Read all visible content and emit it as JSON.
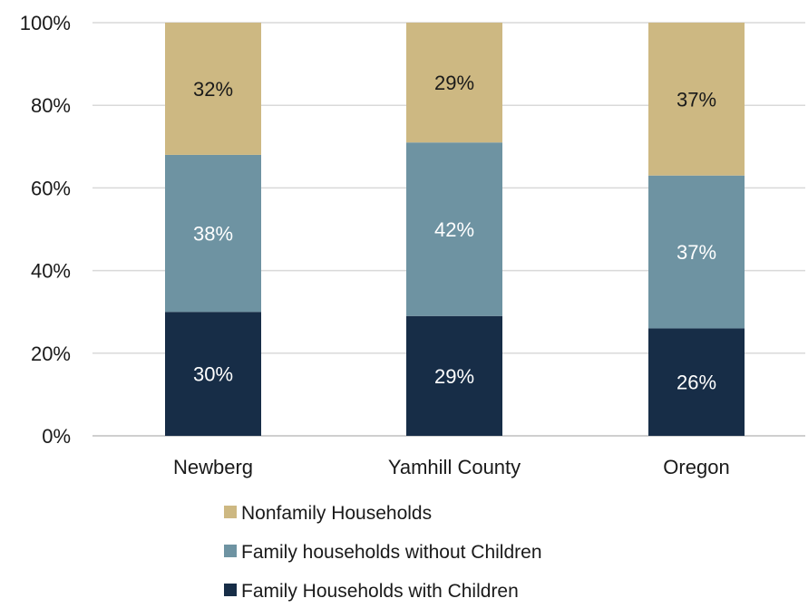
{
  "chart_data": {
    "type": "bar",
    "stacked": true,
    "categories": [
      "Newberg",
      "Yamhill County",
      "Oregon"
    ],
    "series": [
      {
        "name": "Family Households with Children",
        "values": [
          30,
          29,
          26
        ],
        "labels": [
          "30%",
          "29%",
          "26%"
        ],
        "color": "#172d47",
        "label_color": "#ffffff"
      },
      {
        "name": "Family households without Children",
        "values": [
          38,
          42,
          37
        ],
        "labels": [
          "38%",
          "42%",
          "37%"
        ],
        "color": "#6e93a2",
        "label_color": "#ffffff"
      },
      {
        "name": "Nonfamily Households",
        "values": [
          32,
          29,
          37
        ],
        "labels": [
          "32%",
          "29%",
          "37%"
        ],
        "color": "#cdb882",
        "label_color": "#1a1a1a"
      }
    ],
    "ylim": [
      0,
      100
    ],
    "yticks": [
      0,
      20,
      40,
      60,
      80,
      100
    ],
    "ytick_labels": [
      "0%",
      "20%",
      "40%",
      "60%",
      "80%",
      "100%"
    ],
    "grid": true,
    "legend_position": "bottom",
    "legend_order": [
      "Nonfamily Households",
      "Family households without Children",
      "Family Households with Children"
    ],
    "title": "",
    "xlabel": "",
    "ylabel": ""
  }
}
